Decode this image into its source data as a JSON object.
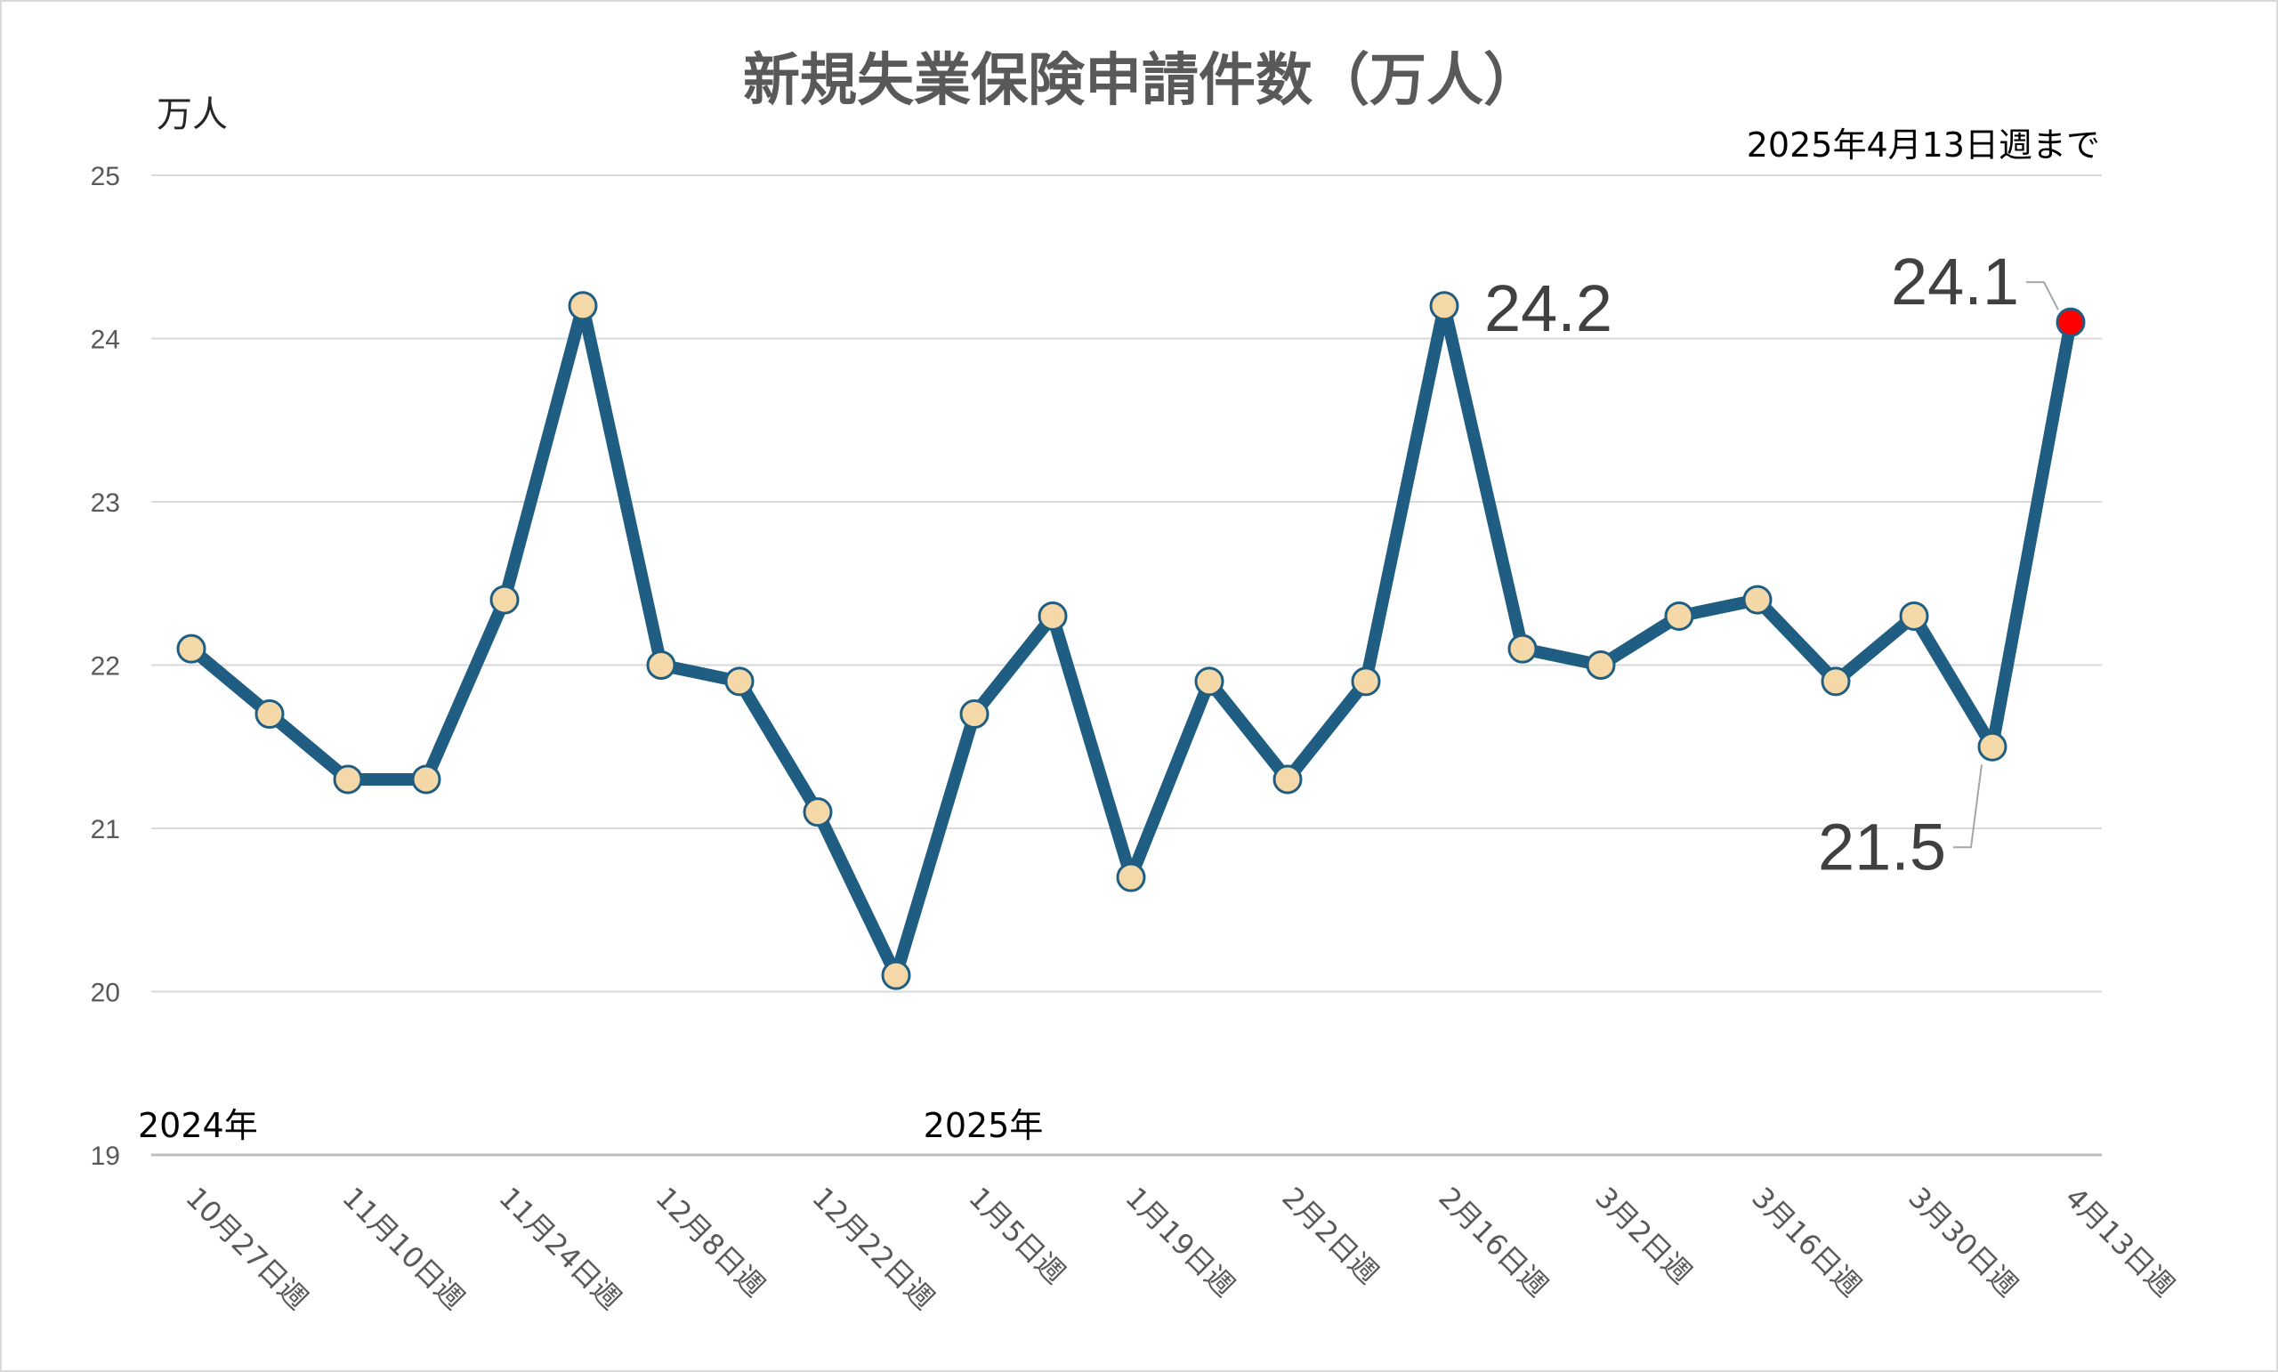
{
  "chart_data": {
    "type": "line",
    "title": "新規失業保険申請件数（万人）",
    "ylabel": "万人",
    "note": "2025年4月13日週まで",
    "ylim": [
      19,
      25
    ],
    "yticks": [
      "19",
      "20",
      "21",
      "22",
      "23",
      "24",
      "25"
    ],
    "grid": true,
    "categories": [
      "10月27日週",
      "",
      "11月10日週",
      "",
      "11月24日週",
      "",
      "12月8日週",
      "",
      "12月22日週",
      "",
      "1月5日週",
      "",
      "1月19日週",
      "",
      "2月2日週",
      "",
      "2月16日週",
      "",
      "3月2日週",
      "",
      "3月16日週",
      "",
      "3月30日週",
      "",
      "4月13日週"
    ],
    "year_labels": [
      {
        "label": "2024年",
        "category_index": 0
      },
      {
        "label": "2025年",
        "category_index": 10
      }
    ],
    "series": [
      {
        "values": [
          22.1,
          21.7,
          21.3,
          21.3,
          22.4,
          24.2,
          22.0,
          21.9,
          21.1,
          20.1,
          21.7,
          22.3,
          20.7,
          21.9,
          21.3,
          21.9,
          24.2,
          22.1,
          22.0,
          22.3,
          22.4,
          21.9,
          22.3,
          21.5,
          24.1
        ],
        "line_color": "#1f5e82",
        "marker_color": "#f5d8a8",
        "highlight_color": "#ff0000"
      }
    ],
    "annotations": [
      {
        "text": "24.2",
        "index": 16
      },
      {
        "text": "21.5",
        "index": 23
      },
      {
        "text": "24.1",
        "index": 24
      }
    ]
  }
}
